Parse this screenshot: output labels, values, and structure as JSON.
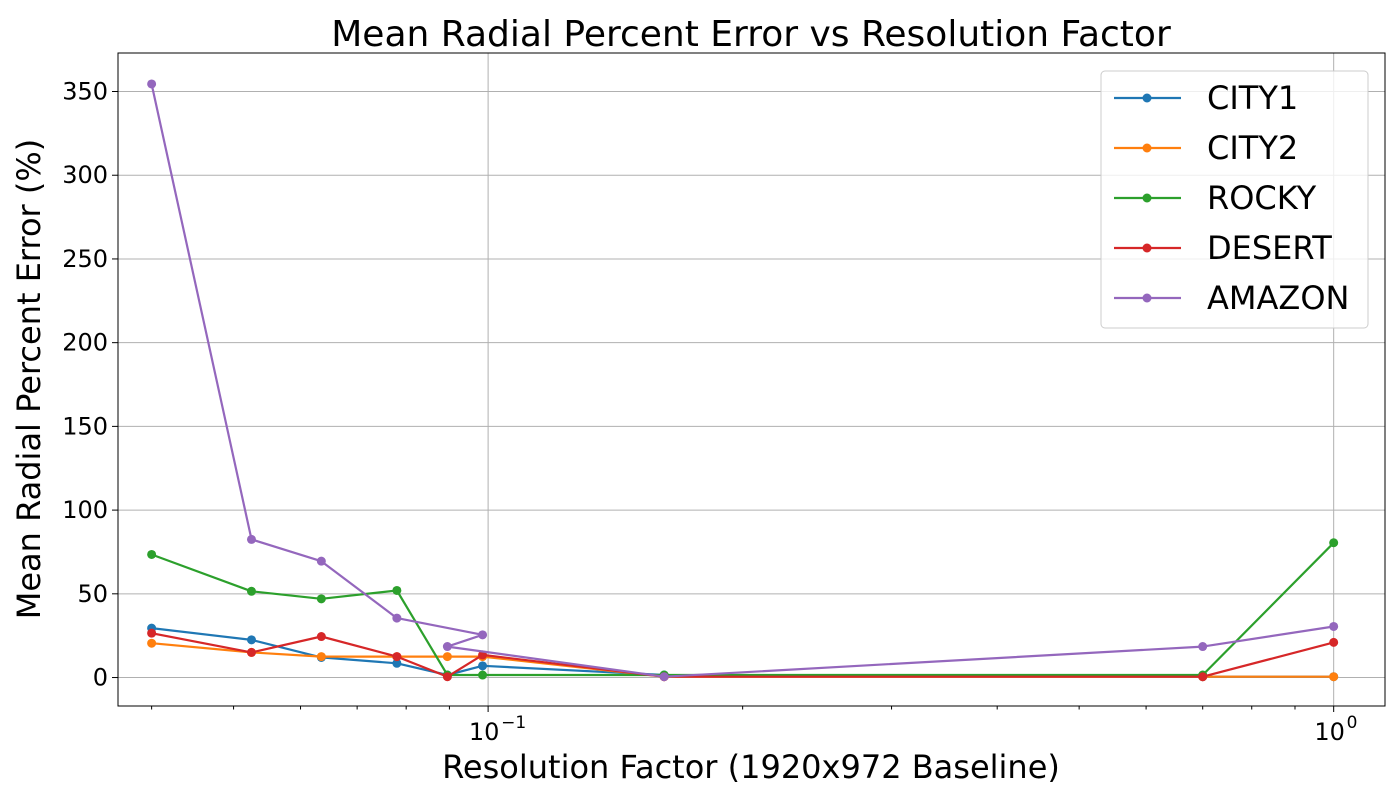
{
  "chart_data": {
    "type": "line",
    "title": "Mean Radial Percent Error vs Resolution Factor",
    "xlabel": "Resolution Factor (1920x972 Baseline)",
    "ylabel": "Mean Radial Percent Error (%)",
    "xscale": "log",
    "xlim": [
      0.0365,
      1.15
    ],
    "ylim": [
      -17,
      373
    ],
    "yticks": [
      0,
      50,
      100,
      150,
      200,
      250,
      300,
      350
    ],
    "ytick_labels": [
      "0",
      "50",
      "100",
      "150",
      "200",
      "250",
      "300",
      "350"
    ],
    "xticks": [
      0.1,
      1
    ],
    "xtick_labels": [
      {
        "base": "10",
        "exp": "−1"
      },
      {
        "base": "10",
        "exp": "0"
      }
    ],
    "x_minor_ticks": [
      0.04,
      0.05,
      0.06,
      0.07,
      0.08,
      0.09,
      0.2,
      0.3,
      0.4,
      0.5,
      0.6,
      0.7,
      0.8,
      0.9
    ],
    "grid": true,
    "legend_position": "top-right",
    "series": [
      {
        "name": "CITY1",
        "color": "#1f77b4",
        "x": [
          0.04,
          0.0525,
          0.0635,
          0.078,
          0.0895,
          0.0985,
          0.1615,
          0.7,
          1.0
        ],
        "y": [
          29.5,
          22.5,
          12,
          8.5,
          1.5,
          7,
          1.5,
          0.5,
          0.5
        ]
      },
      {
        "name": "CITY2",
        "color": "#ff7f0e",
        "x": [
          0.04,
          0.0525,
          0.0635,
          0.078,
          0.0895,
          0.0985,
          0.1615,
          0.7,
          1.0
        ],
        "y": [
          20.5,
          15,
          12.5,
          12.5,
          12.5,
          12.5,
          0.5,
          0.5,
          0.5
        ]
      },
      {
        "name": "ROCKY",
        "color": "#2ca02c",
        "x": [
          0.04,
          0.0525,
          0.0635,
          0.078,
          0.0895,
          0.0985,
          0.1615,
          0.7,
          1.0
        ],
        "y": [
          73.5,
          51.5,
          47,
          52,
          1.5,
          1.5,
          1.5,
          1.5,
          80.5
        ]
      },
      {
        "name": "DESERT",
        "color": "#d62728",
        "x": [
          0.04,
          0.0525,
          0.0635,
          0.078,
          0.0895,
          0.0985,
          0.1615,
          0.7,
          1.0
        ],
        "y": [
          26.5,
          15,
          24.5,
          12.5,
          0.5,
          13.5,
          0.5,
          0.5,
          21
        ]
      },
      {
        "name": "AMAZON",
        "color": "#9467bd",
        "x": [
          0.04,
          0.0525,
          0.0635,
          0.078,
          0.0985,
          0.0895,
          0.1615,
          0.7,
          1.0
        ],
        "y": [
          354.5,
          82.5,
          69.5,
          35.5,
          25.5,
          18.5,
          0.5,
          18.5,
          30.5
        ]
      }
    ]
  }
}
